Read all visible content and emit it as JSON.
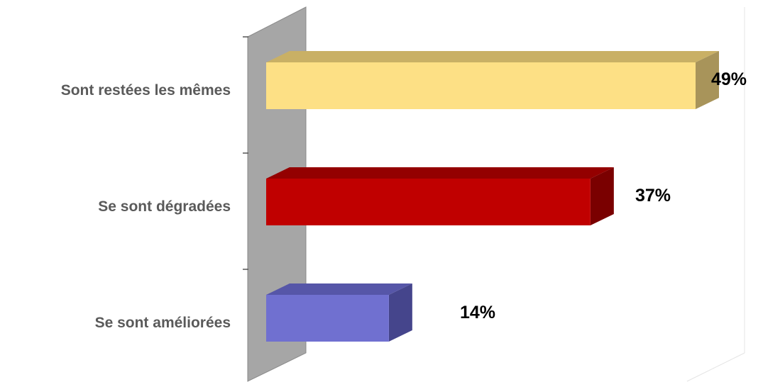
{
  "chart_data": {
    "type": "bar",
    "orientation": "horizontal",
    "style": "3d",
    "categories": [
      "Sont restées les mêmes",
      "Se sont dégradées",
      "Se sont améliorées"
    ],
    "values": [
      49,
      37,
      14
    ],
    "value_labels": [
      "49%",
      "37%",
      "14%"
    ],
    "unit": "%",
    "xlim": [
      0,
      49
    ],
    "grid": false,
    "legend": "none",
    "colors": [
      {
        "front": "#FDE085",
        "top": "#C9B065",
        "side": "#A8945A"
      },
      {
        "front": "#C00000",
        "top": "#940000",
        "side": "#7A0000"
      },
      {
        "front": "#7070D0",
        "top": "#5656A8",
        "side": "#45458C"
      }
    ],
    "wall_color": "#A6A6A6"
  }
}
